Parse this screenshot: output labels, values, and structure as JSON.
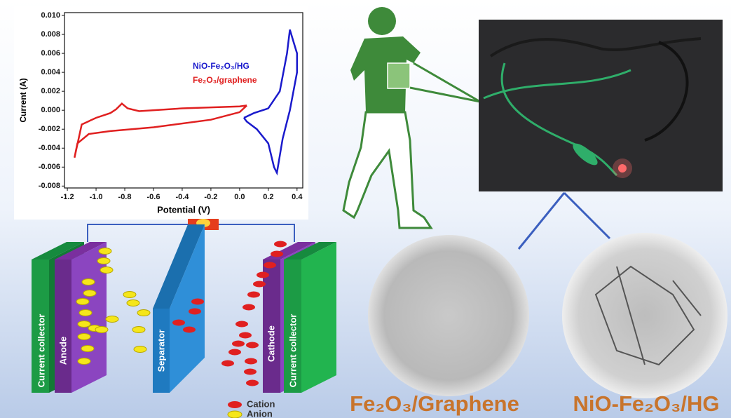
{
  "chart_data": {
    "type": "line",
    "xlabel": "Potential (V)",
    "ylabel": "Current (A)",
    "xlim": [
      -1.22,
      0.44
    ],
    "ylim": [
      -0.0082,
      0.0103
    ],
    "xticks": [
      -1.2,
      {
        "value": -1.0,
        "label": "-1.0"
      },
      -0.8,
      -0.6,
      -0.4,
      -0.2,
      {
        "value": 0.0,
        "label": "0.0"
      },
      0.2,
      0.4
    ],
    "yticks": [
      {
        "value": 0.01,
        "label": "0.010"
      },
      0.008,
      0.006,
      0.004,
      0.002,
      {
        "value": 0.0,
        "label": "0.000"
      },
      -0.002,
      -0.004,
      -0.006,
      -0.008
    ],
    "series": [
      {
        "name": "NiO-Fe₂O₃/HG",
        "color": "#1a1acc",
        "x": [
          0.03,
          0.1,
          0.2,
          0.28,
          0.33,
          0.35,
          0.38,
          0.4,
          0.4,
          0.35,
          0.3,
          0.26,
          0.24,
          0.2,
          0.12,
          0.05,
          0.03
        ],
        "values": [
          -0.0008,
          -0.0003,
          0.0002,
          0.002,
          0.006,
          0.0085,
          0.007,
          0.006,
          0.004,
          0.0,
          -0.003,
          -0.0066,
          -0.006,
          -0.0035,
          -0.002,
          -0.0012,
          -0.0008
        ]
      },
      {
        "name": "Fe₂O₃/graphene",
        "color": "#e02020",
        "x": [
          0.05,
          0.0,
          -0.4,
          -0.7,
          -0.78,
          -0.82,
          -0.86,
          -0.9,
          -1.0,
          -1.1,
          -1.15,
          -1.13,
          -1.05,
          -0.9,
          -0.6,
          -0.2,
          0.0,
          0.05
        ],
        "values": [
          0.0005,
          0.0004,
          0.0002,
          -0.0001,
          0.0002,
          0.0007,
          0.0001,
          -0.0003,
          -0.0008,
          -0.0015,
          -0.005,
          -0.0035,
          -0.0025,
          -0.0022,
          -0.0018,
          -0.001,
          -0.0002,
          0.0005
        ]
      }
    ]
  },
  "diagram": {
    "left_collector": "Current collector",
    "anode": "Anode",
    "separator": "Separator",
    "cathode": "Cathode",
    "right_collector": "Current collector",
    "cation": "Cation",
    "anion": "Anion"
  },
  "images": {
    "left_caption": "Fe₂O₃/Graphene",
    "right_caption": "NiO-Fe₂O₃/HG"
  }
}
